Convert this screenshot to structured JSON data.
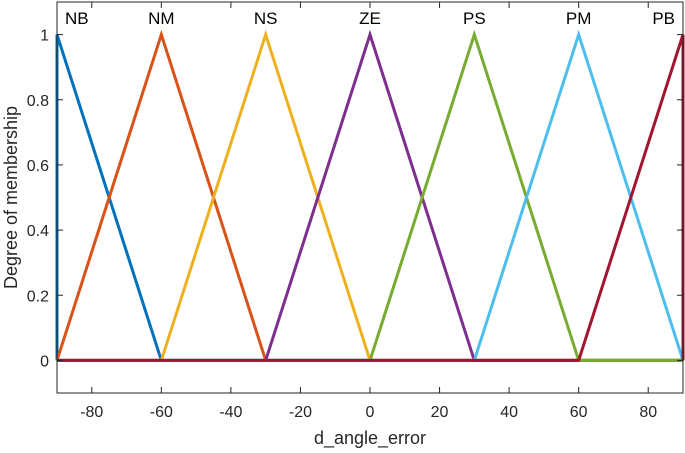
{
  "chart_data": {
    "type": "line",
    "title": "",
    "xlabel": "d_angle_error",
    "ylabel": "Degree of membership",
    "xlim": [
      -90,
      90
    ],
    "ylim": [
      -0.1,
      1.1
    ],
    "xticks": [
      -80,
      -60,
      -40,
      -20,
      0,
      20,
      40,
      60,
      80
    ],
    "xtick_labels": [
      "-80",
      "-60",
      "-40",
      "-20",
      "0",
      "20",
      "40",
      "60",
      "80"
    ],
    "yticks": [
      0,
      0.2,
      0.4,
      0.6,
      0.8,
      1
    ],
    "ytick_labels": [
      "0",
      "0.2",
      "0.4",
      "0.6",
      "0.8",
      "1"
    ],
    "grid": false,
    "series": [
      {
        "name": "NB",
        "color": "#0072BD",
        "x": [
          -90,
          -90,
          -60,
          90
        ],
        "y": [
          0,
          1,
          0,
          0
        ]
      },
      {
        "name": "NM",
        "color": "#D95319",
        "x": [
          -90,
          -60,
          -30,
          90
        ],
        "y": [
          0,
          1,
          0,
          0
        ]
      },
      {
        "name": "NS",
        "color": "#EDB120",
        "x": [
          -90,
          -60,
          -30,
          0,
          90
        ],
        "y": [
          0,
          0,
          1,
          0,
          0
        ]
      },
      {
        "name": "ZE",
        "color": "#7E2F8E",
        "x": [
          -90,
          -30,
          0,
          30,
          90
        ],
        "y": [
          0,
          0,
          1,
          0,
          0
        ]
      },
      {
        "name": "PS",
        "color": "#77AC30",
        "x": [
          -90,
          0,
          30,
          60,
          90
        ],
        "y": [
          0,
          0,
          1,
          0,
          0
        ]
      },
      {
        "name": "PM",
        "color": "#4DBEEE",
        "x": [
          -90,
          30,
          60,
          90,
          90
        ],
        "y": [
          0,
          0,
          1,
          0,
          0
        ]
      },
      {
        "name": "PB",
        "color": "#A2142F",
        "x": [
          -90,
          60,
          90,
          90
        ],
        "y": [
          0,
          0,
          1,
          0
        ]
      }
    ]
  }
}
